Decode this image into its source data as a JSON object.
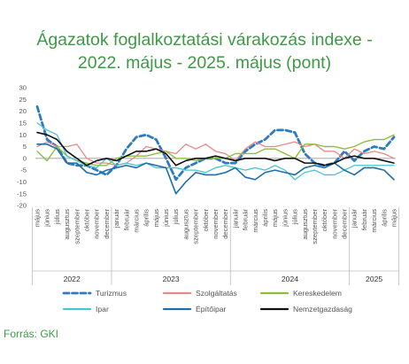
{
  "page": {
    "title_line1": "Ágazatok foglalkoztatási várakozás indexe -",
    "title_line2": "2022. május - 2025. május (pont)",
    "source": "Forrás: GKI"
  },
  "chart_data": {
    "type": "line",
    "ylim": [
      -20,
      30
    ],
    "yticks": [
      30,
      25,
      20,
      15,
      10,
      5,
      0,
      -5,
      -10,
      -15,
      -20
    ],
    "grid": false,
    "legend_position": "bottom",
    "categories": [
      "május",
      "június",
      "július",
      "augusztus",
      "szeptember",
      "október",
      "november",
      "december",
      "január",
      "február",
      "március",
      "április",
      "május",
      "június",
      "július",
      "augusztus",
      "szeptember",
      "október",
      "november",
      "december",
      "január",
      "február",
      "március",
      "április",
      "május",
      "június",
      "július",
      "augusztus",
      "szeptember",
      "október",
      "november",
      "december",
      "január",
      "február",
      "március",
      "április",
      "május"
    ],
    "years": [
      {
        "label": "2022",
        "from": 0,
        "to": 7
      },
      {
        "label": "2023",
        "from": 8,
        "to": 19
      },
      {
        "label": "2024",
        "from": 20,
        "to": 31
      },
      {
        "label": "2025",
        "from": 32,
        "to": 36
      }
    ],
    "series": [
      {
        "name": "Turizmus",
        "color": "#2e7bbf",
        "dash": "6,3.5",
        "width": 2.8,
        "values": [
          22,
          8,
          5,
          -2,
          -3,
          -3,
          -5,
          -7,
          -3,
          4,
          9,
          10,
          8,
          0,
          -9,
          -4,
          -2,
          0,
          0,
          -2,
          -2,
          3,
          6,
          8,
          12,
          12,
          11,
          2,
          -2,
          -3,
          -2,
          3,
          -1,
          3,
          5,
          4,
          9
        ]
      },
      {
        "name": "Szolgáltatás",
        "color": "#e8898a",
        "dash": "",
        "width": 1.3,
        "values": [
          5,
          7,
          5,
          5,
          6,
          0,
          -2,
          -2,
          -3,
          -2,
          1,
          5,
          4,
          3,
          2,
          6,
          4,
          6,
          3,
          2,
          -1,
          4,
          7,
          5,
          5,
          6,
          7,
          5,
          6,
          3,
          3,
          0,
          4,
          2,
          3,
          2,
          0
        ]
      },
      {
        "name": "Kereskedelem",
        "color": "#8cbf3f",
        "dash": "",
        "width": 1.4,
        "values": [
          3,
          -1,
          5,
          1,
          -1,
          -2,
          -3,
          -3,
          0,
          1,
          1,
          1,
          2,
          3,
          0,
          0,
          -1,
          0,
          0,
          0,
          2,
          2,
          2,
          4,
          4,
          2,
          0,
          6,
          6,
          5,
          5,
          4,
          5,
          7,
          8,
          8,
          10
        ]
      },
      {
        "name": "Ipar",
        "color": "#48c4d2",
        "dash": "",
        "width": 1.3,
        "values": [
          15,
          12,
          10,
          1,
          -1,
          -3,
          -4,
          0,
          -3,
          -2,
          -3,
          -2,
          -4,
          -4,
          -4,
          -5,
          -5,
          -6,
          -4,
          -3,
          -4,
          -5,
          -4,
          -5,
          -3,
          -5,
          -9,
          -6,
          -5,
          -7,
          -7,
          -5,
          -3,
          -3,
          -3,
          -3,
          -3
        ]
      },
      {
        "name": "Építőipar",
        "color": "#1f6fa8",
        "dash": "",
        "width": 1.6,
        "values": [
          6,
          6,
          4,
          -2,
          -2,
          -6,
          -7,
          -5,
          -4,
          -3,
          -4,
          -2,
          -3,
          -4,
          -15,
          -10,
          -6,
          -7,
          -7,
          -6,
          -4,
          -8,
          -9,
          -6,
          -5,
          -6,
          -7,
          -4,
          -3,
          -4,
          -2,
          -5,
          -7,
          -4,
          -4,
          -5,
          -9
        ]
      },
      {
        "name": "Nemzetgazdaság",
        "color": "#111111",
        "dash": "",
        "width": 1.6,
        "values": [
          11,
          10,
          8,
          3,
          0,
          -3,
          -1,
          0,
          -1,
          1,
          3,
          3,
          4,
          2,
          -3,
          -1,
          0,
          0,
          1,
          0,
          -1,
          0,
          0,
          0,
          -1,
          0,
          0,
          -2,
          -2,
          -3,
          -2,
          0,
          1,
          0,
          0,
          -1,
          -2
        ]
      }
    ]
  }
}
